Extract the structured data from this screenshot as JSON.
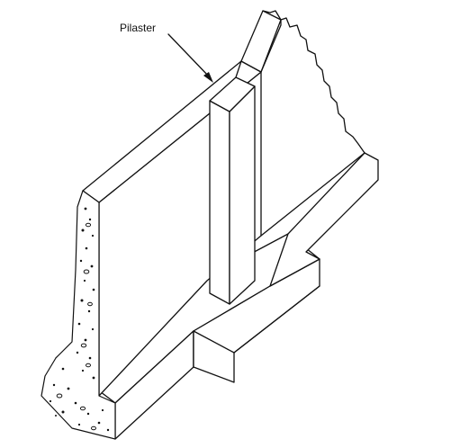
{
  "labels": {
    "pilaster": "Pilaster"
  },
  "colors": {
    "line": "#111111",
    "background": "#ffffff"
  }
}
